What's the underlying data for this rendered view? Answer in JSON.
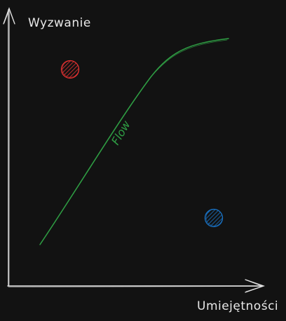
{
  "axes": {
    "y_label": "Wyzwanie",
    "x_label": "Umiejętności",
    "color": "#e6e6e6"
  },
  "flow": {
    "label": "Flow",
    "color": "#2f9e44"
  },
  "markers": {
    "red": {
      "color": "#e03131",
      "icon": "hatched-circle"
    },
    "blue": {
      "color": "#1971c2",
      "icon": "hatched-circle"
    }
  }
}
